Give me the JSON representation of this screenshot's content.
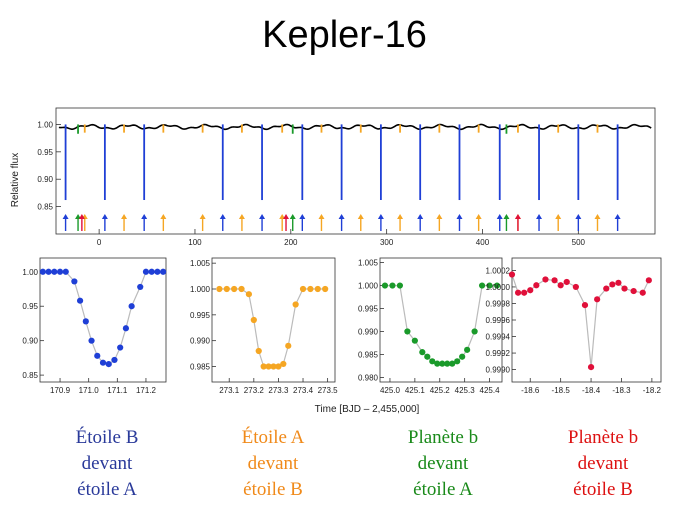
{
  "title": "Kepler-16",
  "colors": {
    "star_b_transit": "#1f3fd6",
    "star_a_transit": "#f5a623",
    "planet_over_a": "#1a9a2a",
    "planet_over_b": "#e0103a",
    "lightcurve": "#000000",
    "fit": "#bbbbbb",
    "caption_blue": "#2a3a9a",
    "caption_orange": "#f08a1a",
    "caption_green": "#1a8a1a",
    "caption_red": "#dd1111"
  },
  "chart_data": [
    {
      "type": "line",
      "ylabel": "Relative flux",
      "xlim": [
        -45,
        580
      ],
      "ylim": [
        0.8,
        1.03
      ],
      "xticks": [
        0,
        100,
        200,
        300,
        400,
        500
      ],
      "yticks": [
        "1.00",
        "0.95",
        "0.90",
        "0.85"
      ],
      "ytick_values": [
        1.0,
        0.95,
        0.9,
        0.85
      ],
      "eclipses_star_b_in_front": [
        -35,
        6,
        47,
        129,
        170,
        212,
        253,
        294,
        335,
        376,
        418,
        459,
        500,
        541
      ],
      "eclipses_star_a_in_front": [
        -15,
        26,
        67,
        108,
        149,
        191,
        232,
        273,
        314,
        355,
        396,
        437,
        479,
        520
      ],
      "planet_transits_over_a": [
        -22,
        202,
        425
      ],
      "planet_transits_over_b": [
        -18,
        195,
        437
      ]
    },
    {
      "type": "scatter",
      "xticks": [
        "170.9",
        "171.0",
        "171.1",
        "171.2"
      ],
      "xtick_values": [
        170.9,
        171.0,
        171.1,
        171.2
      ],
      "yticks": [
        "1.00",
        "0.95",
        "0.90",
        "0.85"
      ],
      "ytick_values": [
        1.0,
        0.95,
        0.9,
        0.85
      ],
      "xlim": [
        170.83,
        171.27
      ],
      "ylim": [
        0.84,
        1.02
      ],
      "x": [
        170.84,
        170.86,
        170.88,
        170.9,
        170.92,
        170.95,
        170.97,
        170.99,
        171.01,
        171.03,
        171.05,
        171.07,
        171.09,
        171.11,
        171.13,
        171.15,
        171.18,
        171.2,
        171.22,
        171.24,
        171.26
      ],
      "y": [
        1.0,
        1.0,
        1.0,
        1.0,
        1.0,
        0.986,
        0.958,
        0.928,
        0.9,
        0.878,
        0.868,
        0.866,
        0.872,
        0.89,
        0.918,
        0.95,
        0.978,
        1.0,
        1.0,
        1.0,
        1.0
      ]
    },
    {
      "type": "scatter",
      "xticks": [
        "273.1",
        "273.2",
        "273.3",
        "273.4",
        "273.5"
      ],
      "xtick_values": [
        273.1,
        273.2,
        273.3,
        273.4,
        273.5
      ],
      "yticks": [
        "1.005",
        "1.000",
        "0.995",
        "0.990",
        "0.985"
      ],
      "ytick_values": [
        1.005,
        1.0,
        0.995,
        0.99,
        0.985
      ],
      "xlim": [
        273.03,
        273.53
      ],
      "ylim": [
        0.982,
        1.006
      ],
      "x": [
        273.06,
        273.09,
        273.12,
        273.15,
        273.18,
        273.2,
        273.22,
        273.24,
        273.26,
        273.28,
        273.3,
        273.32,
        273.34,
        273.37,
        273.4,
        273.43,
        273.46,
        273.49
      ],
      "y": [
        1.0,
        1.0,
        1.0,
        1.0,
        0.999,
        0.994,
        0.988,
        0.985,
        0.985,
        0.985,
        0.985,
        0.9855,
        0.989,
        0.997,
        1.0,
        1.0,
        1.0,
        1.0
      ]
    },
    {
      "type": "scatter",
      "xticks": [
        "425.0",
        "425.1",
        "425.2",
        "425.3",
        "425.4"
      ],
      "xtick_values": [
        425.0,
        425.1,
        425.2,
        425.3,
        425.4
      ],
      "yticks": [
        "1.005",
        "1.000",
        "0.995",
        "0.990",
        "0.985",
        "0.980"
      ],
      "ytick_values": [
        1.005,
        1.0,
        0.995,
        0.99,
        0.985,
        0.98
      ],
      "xlim": [
        424.96,
        425.45
      ],
      "ylim": [
        0.979,
        1.006
      ],
      "x": [
        424.98,
        425.01,
        425.04,
        425.07,
        425.1,
        425.13,
        425.15,
        425.17,
        425.19,
        425.21,
        425.23,
        425.25,
        425.27,
        425.29,
        425.31,
        425.34,
        425.37,
        425.4,
        425.43
      ],
      "y": [
        1.0,
        1.0,
        1.0,
        0.99,
        0.988,
        0.9855,
        0.9845,
        0.9835,
        0.983,
        0.983,
        0.983,
        0.983,
        0.9835,
        0.9845,
        0.986,
        0.99,
        1.0,
        1.0,
        1.0
      ]
    },
    {
      "type": "scatter",
      "xticks": [
        "-18.6",
        "-18.5",
        "-18.4",
        "-18.3",
        "-18.2"
      ],
      "xtick_values": [
        -18.6,
        -18.5,
        -18.4,
        -18.3,
        -18.2
      ],
      "yticks": [
        "1.0002",
        "1.0000",
        "0.9998",
        "0.9996",
        "0.9994",
        "0.9992",
        "0.9990"
      ],
      "ytick_values": [
        1.0002,
        1.0,
        0.9998,
        0.9996,
        0.9994,
        0.9992,
        0.999
      ],
      "xlim": [
        -18.66,
        -18.17
      ],
      "ylim": [
        0.99885,
        1.00035
      ],
      "x": [
        -18.66,
        -18.64,
        -18.62,
        -18.6,
        -18.58,
        -18.55,
        -18.52,
        -18.5,
        -18.48,
        -18.45,
        -18.42,
        -18.4,
        -18.38,
        -18.35,
        -18.33,
        -18.31,
        -18.29,
        -18.26,
        -18.23,
        -18.21
      ],
      "y": [
        1.00015,
        0.99993,
        0.99993,
        0.99996,
        1.00002,
        1.00009,
        1.00008,
        1.00002,
        1.00006,
        1.0,
        0.99978,
        0.99903,
        0.99985,
        0.99998,
        1.00003,
        1.00005,
        0.99998,
        0.99995,
        0.99993,
        1.00008
      ]
    }
  ],
  "xlabel": "Time [BJD – 2,455,000]",
  "captions": [
    [
      "Étoile B",
      "devant",
      "étoile A"
    ],
    [
      "Étoile A",
      "devant",
      "étoile B"
    ],
    [
      "Planète b",
      "devant",
      "étoile A"
    ],
    [
      "Planète b",
      "devant",
      "étoile B"
    ]
  ]
}
